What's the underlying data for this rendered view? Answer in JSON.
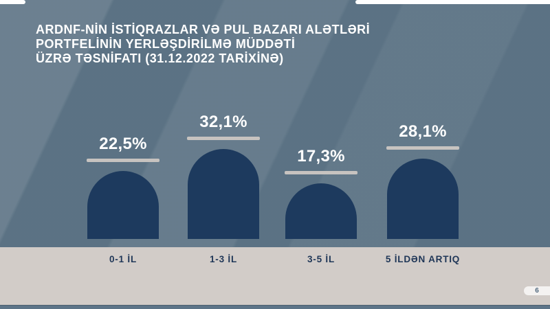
{
  "title": {
    "lines": [
      "ARDNF-NİN İSTİQRAZLAR VƏ PUL BAZARI ALƏTLƏRİ",
      "PORTFELİNİN YERLƏŞDİRİLMƏ MÜDDƏTİ",
      "ÜZRƏ TƏSNİFATI (31.12.2022 TARİXİNƏ)"
    ]
  },
  "page": {
    "number": "6"
  },
  "colors": {
    "background": "#5f7789",
    "bar": "#1d3a5e",
    "value_text": "#ffffff",
    "value_line": "#c7c3c0",
    "title_text": "#ffffff",
    "category_band": "#d2ccc8",
    "category_text": "#1f3657",
    "bottom_strip": "#5d7488",
    "page_pill": "#f4f2f1"
  },
  "chart_data": {
    "type": "bar",
    "title": "ARDNF-NİN İSTİQRAZLAR VƏ PUL BAZARI ALƏTLƏRİ PORTFELİNİN YERLƏŞDİRİLMƏ MÜDDƏTİ ÜZRƏ TƏSNİFATI (31.12.2022 TARİXİNƏ)",
    "categories": [
      "0-1 İL",
      "1-3 İL",
      "3-5 İL",
      "5 İLDƏN ARTIQ"
    ],
    "values": [
      22.5,
      32.1,
      17.3,
      28.1
    ],
    "value_labels": [
      "22,5%",
      "32,1%",
      "17,3%",
      "28,1%"
    ],
    "xlabel": "",
    "ylabel": "",
    "ylim": [
      0,
      35
    ],
    "grid": false,
    "legend": false,
    "bar_style": "rounded-dome-top",
    "value_label_position": "above-bar-with-underline"
  }
}
